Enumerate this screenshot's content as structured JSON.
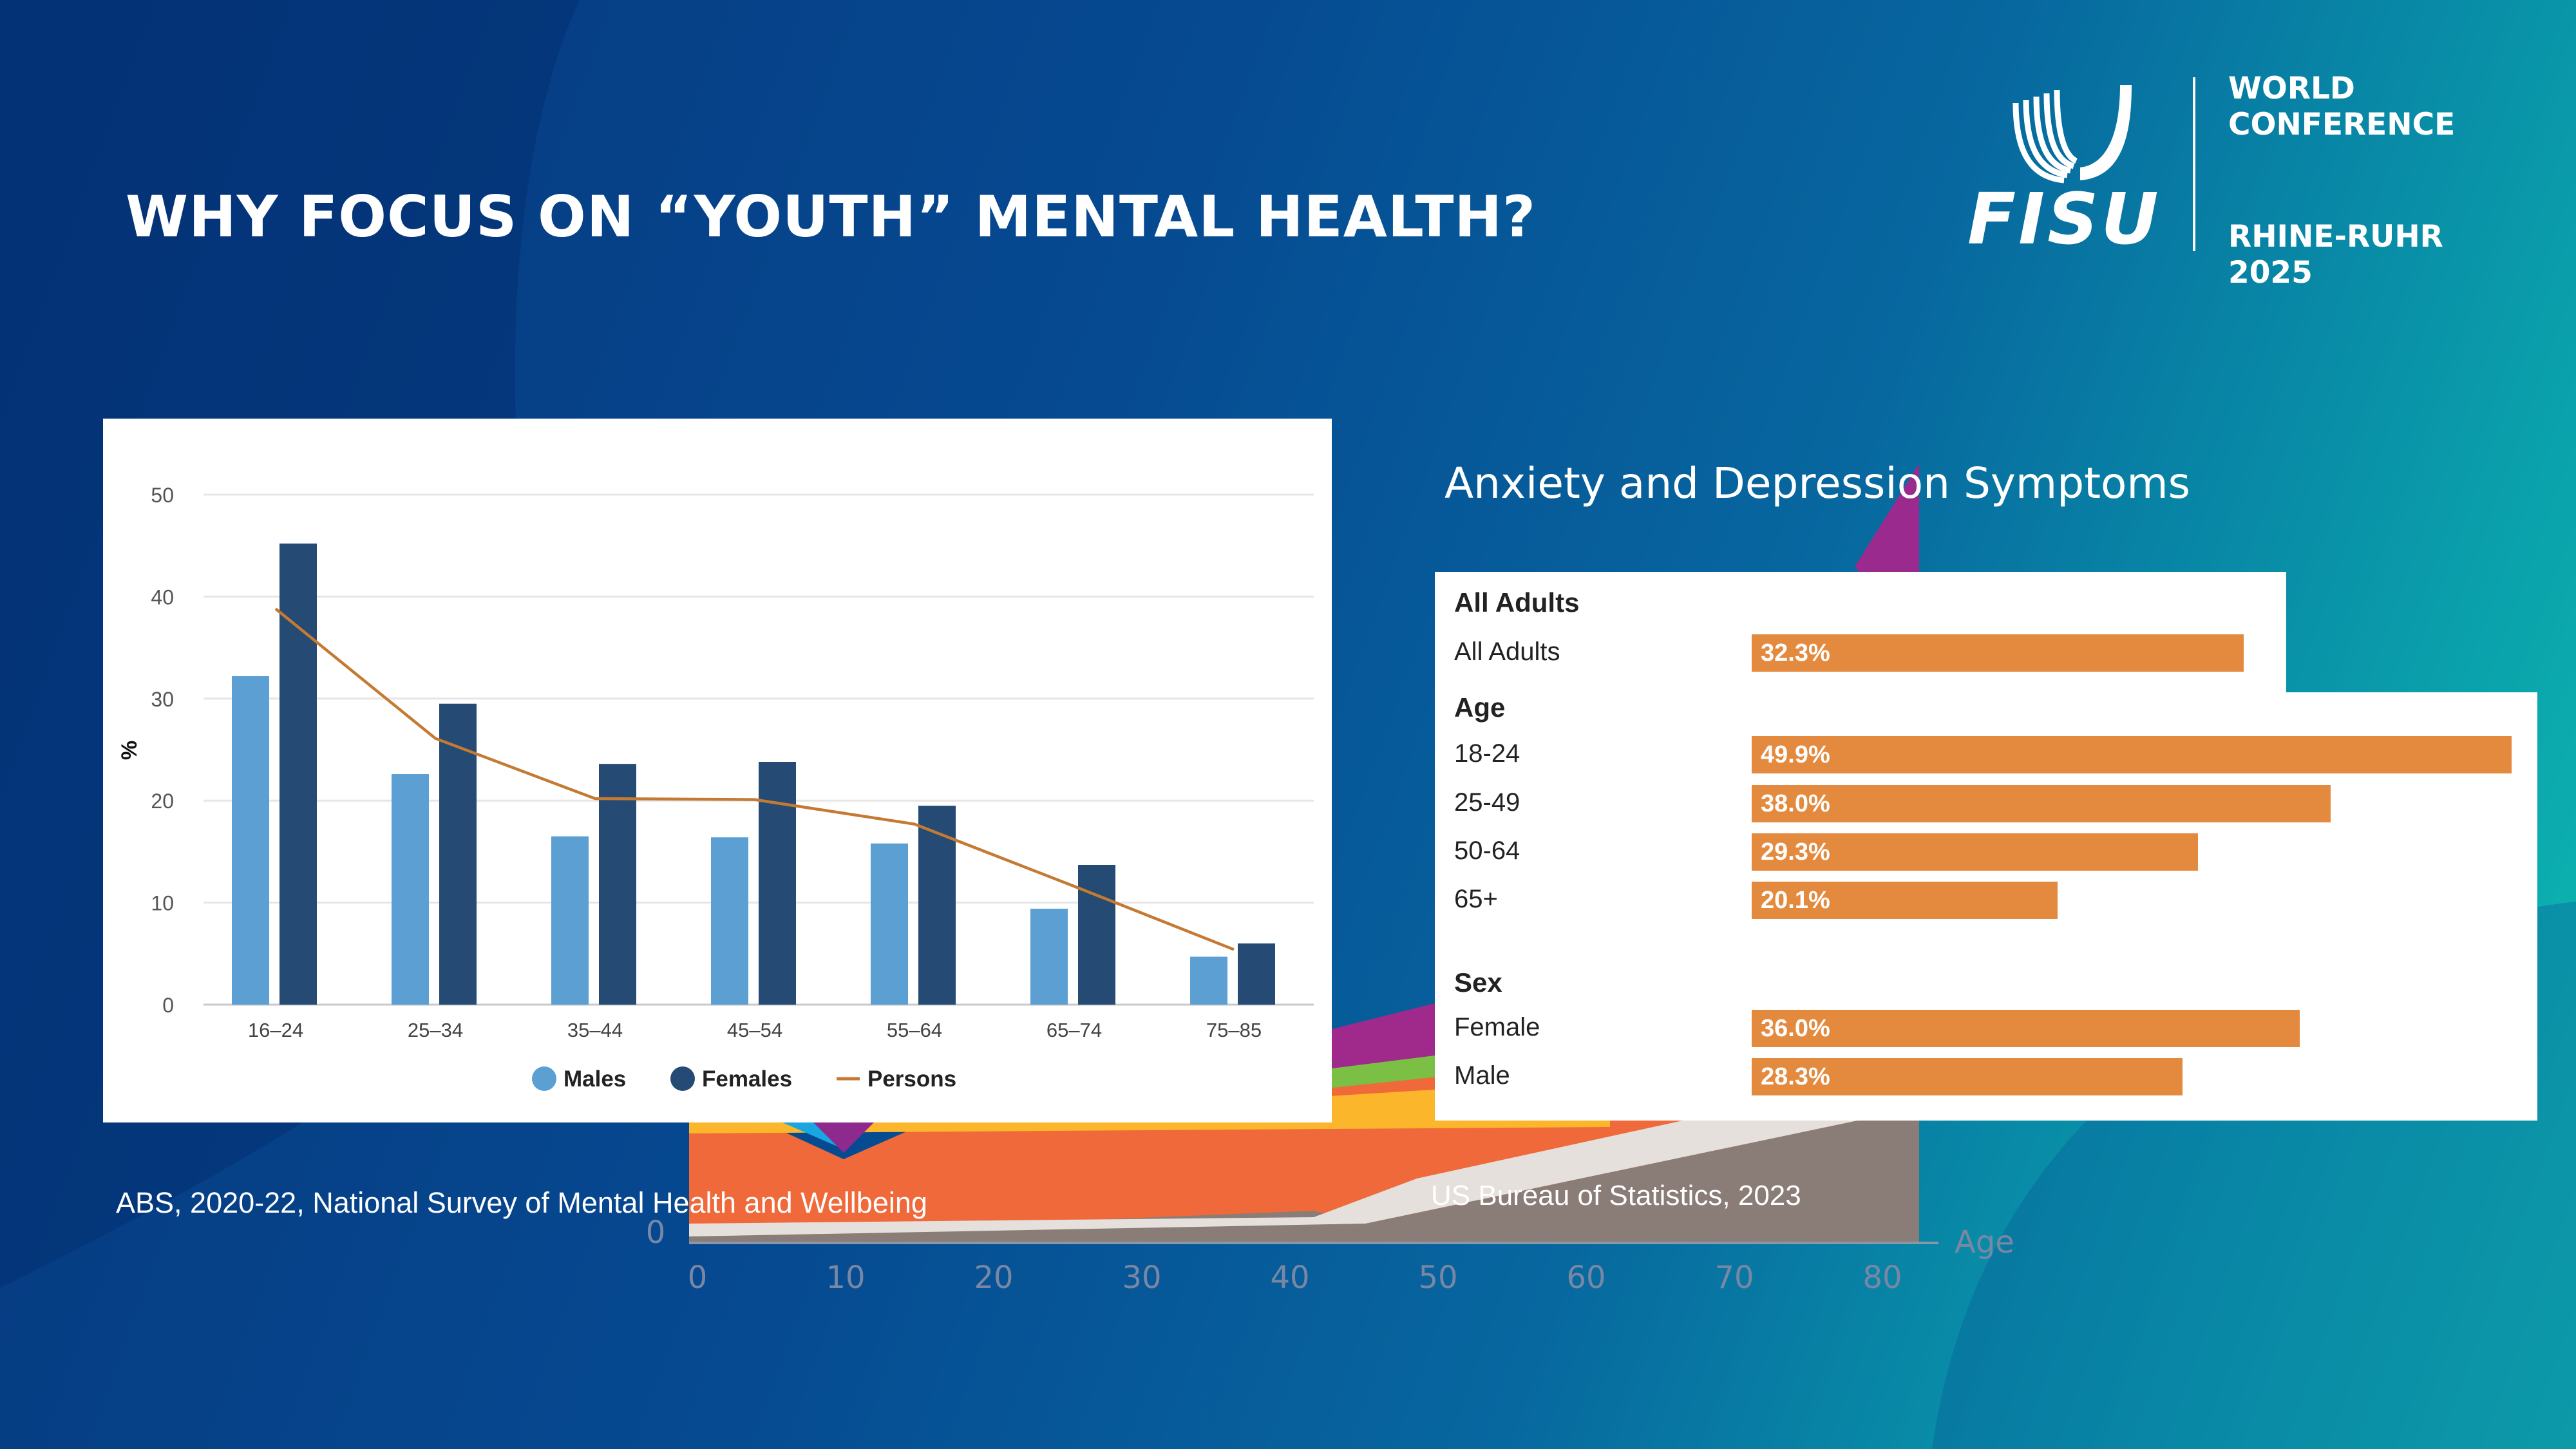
{
  "slide": {
    "title": "WHY FOCUS ON “YOUTH” MENTAL HEALTH?",
    "logo": {
      "brand": "FISU",
      "line1": "WORLD",
      "line2": "CONFERENCE",
      "line3": "RHINE-RUHR 2025"
    },
    "caption_left": "ABS, 2020-22, National Survey of Mental Health and Wellbeing",
    "caption_right": "US Bureau of Statistics, 2023",
    "colors": {
      "males": "#5b9fd3",
      "females": "#254a74",
      "persons": "#c47a33",
      "bar": "#e48a3e"
    }
  },
  "background_chart": {
    "x_ticks": [
      "0",
      "10",
      "20",
      "30",
      "40",
      "50",
      "60",
      "70",
      "80"
    ],
    "y_zero": "0",
    "x_label": "Age"
  },
  "chart_data": [
    {
      "type": "bar",
      "categories": [
        "16–24",
        "25–34",
        "35–44",
        "45–54",
        "55–64",
        "65–74",
        "75–85"
      ],
      "series": [
        {
          "name": "Males",
          "values": [
            32.2,
            22.6,
            16.5,
            16.4,
            15.8,
            9.4,
            4.7
          ]
        },
        {
          "name": "Females",
          "values": [
            45.2,
            29.5,
            23.6,
            23.8,
            19.5,
            13.7,
            6.0
          ]
        },
        {
          "name": "Persons",
          "type": "line",
          "values": [
            38.8,
            26.1,
            20.2,
            20.1,
            17.7,
            11.6,
            5.4
          ]
        }
      ],
      "ylabel": "%",
      "ylim": [
        0,
        50
      ],
      "yticks": [
        "0",
        "10",
        "20",
        "30",
        "40",
        "50"
      ],
      "grid": true,
      "legend": "bottom"
    },
    {
      "type": "bar",
      "orientation": "horizontal",
      "title": "Anxiety and Depression Symptoms",
      "groups": [
        {
          "name": "All Adults",
          "items": [
            {
              "label": "All Adults",
              "value": 32.3,
              "text": "32.3%"
            }
          ]
        },
        {
          "name": "Age",
          "items": [
            {
              "label": "18-24",
              "value": 49.9,
              "text": "49.9%"
            },
            {
              "label": "25-49",
              "value": 38.0,
              "text": "38.0%"
            },
            {
              "label": "50-64",
              "value": 29.3,
              "text": "29.3%"
            },
            {
              "label": "65+",
              "value": 20.1,
              "text": "20.1%"
            }
          ]
        },
        {
          "name": "Sex",
          "items": [
            {
              "label": "Female",
              "value": 36.0,
              "text": "36.0%"
            },
            {
              "label": "Male",
              "value": 28.3,
              "text": "28.3%"
            }
          ]
        }
      ]
    }
  ]
}
